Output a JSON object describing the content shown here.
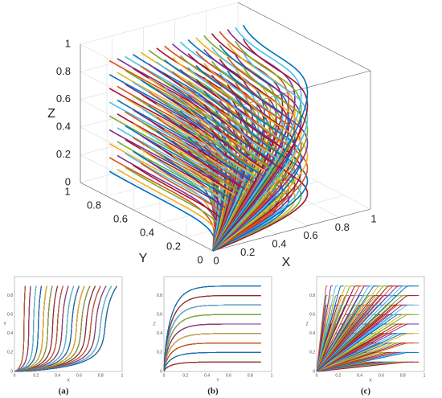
{
  "main": {
    "x_label": "X",
    "y_label": "Y",
    "z_label": "Z",
    "x_ticks": [
      "0",
      "0.2",
      "0.4",
      "0.6",
      "0.8",
      "1"
    ],
    "y_ticks": [
      "0",
      "0.2",
      "0.4",
      "0.6",
      "0.8",
      "1"
    ],
    "z_ticks": [
      "0",
      "0.2",
      "0.4",
      "0.6",
      "0.8",
      "1"
    ]
  },
  "panels": [
    {
      "caption": "(a)",
      "x_label": "X",
      "y_label": "Y",
      "x_ticks": [
        "0",
        "0.2",
        "0.4",
        "0.6",
        "0.8",
        "1"
      ],
      "y_ticks": [
        "0",
        "0.2",
        "0.4",
        "0.6",
        "0.8"
      ]
    },
    {
      "caption": "(b)",
      "x_label": "Y",
      "y_label": "Z",
      "x_ticks": [
        "0",
        "0.2",
        "0.4",
        "0.6",
        "0.8",
        "1"
      ],
      "y_ticks": [
        "0",
        "0.2",
        "0.4",
        "0.6",
        "0.8"
      ]
    },
    {
      "caption": "(c)",
      "x_label": "X",
      "y_label": "Z",
      "x_ticks": [
        "0",
        "0.2",
        "0.4",
        "0.6",
        "0.8",
        "1"
      ],
      "y_ticks": [
        "0",
        "0.2",
        "0.4",
        "0.6",
        "0.8"
      ]
    }
  ]
}
